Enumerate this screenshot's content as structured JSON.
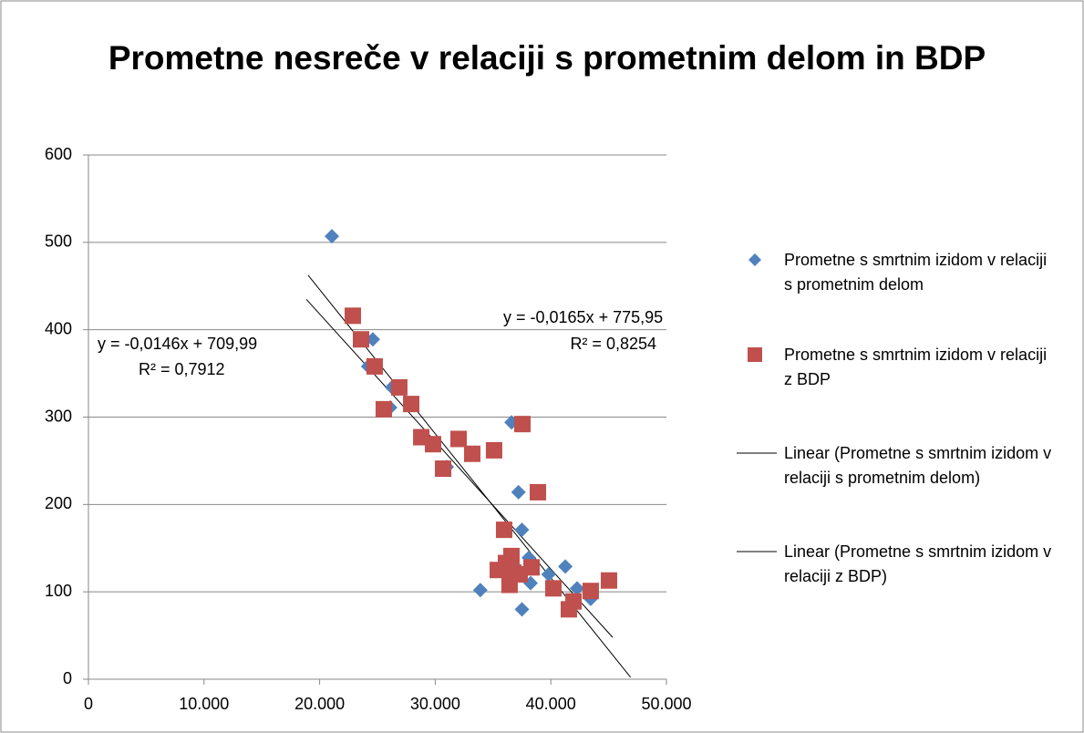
{
  "chart_data": {
    "type": "scatter",
    "title": "Prometne nesreče v relaciji s prometnim delom in BDP",
    "xlim": [
      0,
      50000
    ],
    "xticks": [
      0,
      {
        "value": 10000,
        "label": "10.000"
      },
      {
        "value": 20000,
        "label": "20.000"
      },
      {
        "value": 30000,
        "label": "30.000"
      },
      {
        "value": 40000,
        "label": "40.000"
      },
      {
        "value": 50000,
        "label": "50.000"
      }
    ],
    "ylim": [
      0,
      600
    ],
    "yticks": [
      0,
      100,
      200,
      300,
      400,
      500,
      600
    ],
    "grid": true,
    "legend": "right",
    "series": [
      {
        "name": "Prometne s smrtnim izidom v relaciji s prometnim delom",
        "color": "#4f81bd",
        "marker": "diamond",
        "x": [
          21060,
          24600,
          24200,
          26260,
          26100,
          31000,
          36600,
          37200,
          37500,
          33900,
          37500,
          38250,
          38100,
          39800,
          41250,
          42270,
          43450,
          35900,
          36800
        ],
        "values": [
          507,
          389,
          358,
          334,
          311,
          243,
          294,
          214,
          171,
          102,
          80,
          110,
          139,
          120,
          129,
          104,
          92,
          125,
          130
        ]
      },
      {
        "name": "Prometne s smrtnim izidom v relaciji z BDP",
        "color": "#c0504d",
        "marker": "square",
        "x": [
          22870,
          23580,
          24760,
          26890,
          25550,
          27920,
          28790,
          29810,
          32020,
          33200,
          30680,
          35090,
          37540,
          38880,
          35960,
          35410,
          36120,
          36590,
          36750,
          36430,
          37300,
          38330,
          40220,
          41960,
          41560,
          43450,
          45030
        ],
        "values": [
          416,
          389,
          358,
          334,
          309,
          315,
          277,
          269,
          275,
          258,
          241,
          262,
          292,
          214,
          171,
          125,
          133,
          141,
          122,
          108,
          120,
          128,
          104,
          89,
          80,
          101,
          113
        ]
      }
    ],
    "trendlines": [
      {
        "name": "Linear (Prometne s smrtnim izidom v relaciji s prometnim delom)",
        "color": "#000000",
        "slope": -0.0146,
        "intercept": 709.99,
        "xrange": [
          18850,
          45350
        ],
        "equation": "y = -0,0146x + 709,99",
        "r2": "R² = 0,7912"
      },
      {
        "name": "Linear (Prometne s smrtnim izidom v relaciji z BDP)",
        "color": "#000000",
        "slope": -0.0165,
        "intercept": 775.95,
        "xrange": [
          19000,
          46900
        ],
        "equation": "y = -0,0165x + 775,95",
        "r2": "R² = 0,8254"
      }
    ]
  }
}
